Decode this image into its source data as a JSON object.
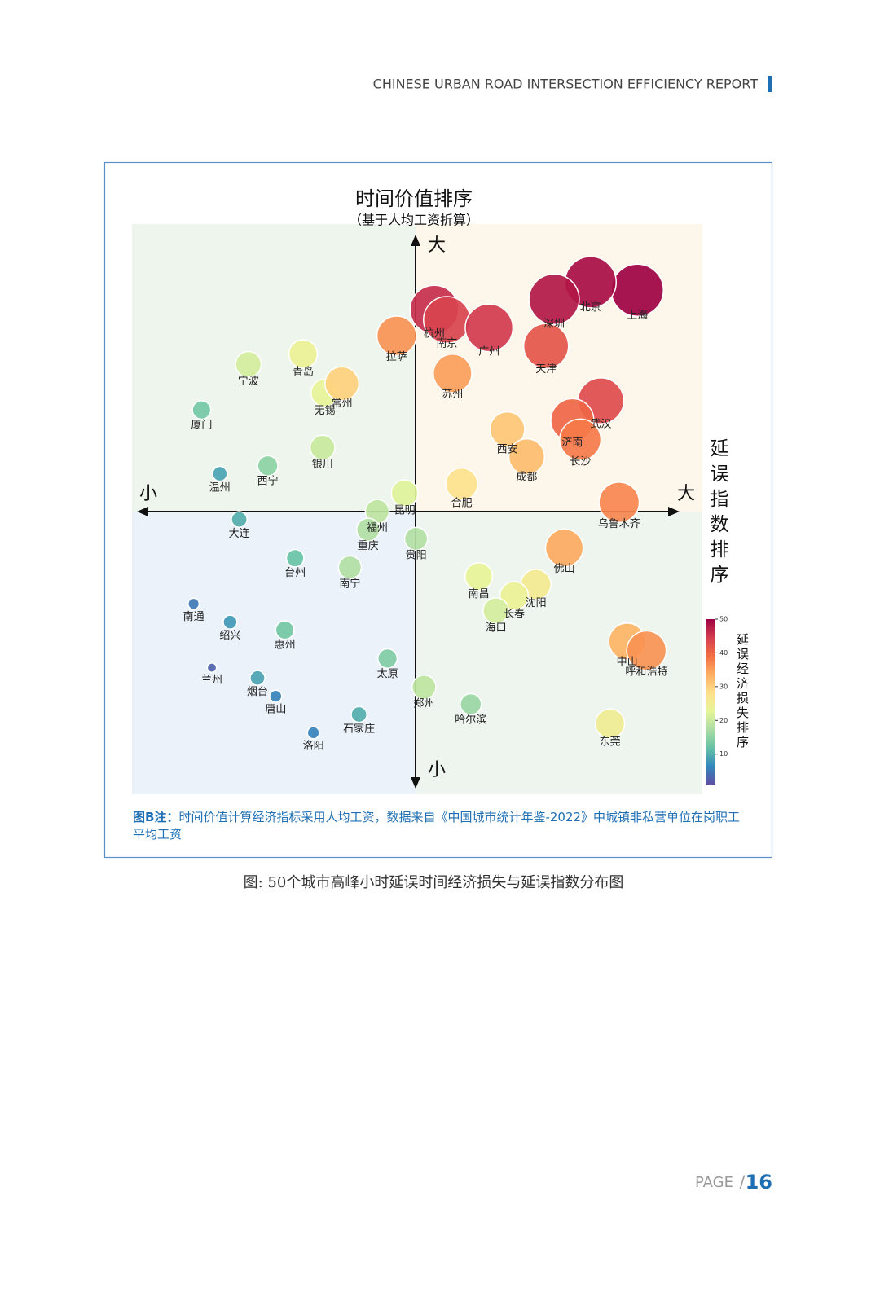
{
  "header": {
    "title": "CHINESE URBAN ROAD INTERSECTION EFFICIENCY REPORT"
  },
  "chart_data": {
    "type": "bubble",
    "title": "时间价值排序",
    "subtitle": "（基于人均工资折算）",
    "y_end_labels": [
      "大",
      "小"
    ],
    "x_title": "延误指数排序",
    "x_end_labels": [
      "小",
      "大"
    ],
    "labels": [
      "上海",
      "北京",
      "深圳",
      "杭州",
      "南京",
      "广州",
      "天津",
      "拉萨",
      "苏州",
      "武汉",
      "济南",
      "长沙",
      "西安",
      "成都",
      "合肥",
      "乌鲁木齐",
      "佛山",
      "南昌",
      "沈阳",
      "长春",
      "海口",
      "中山",
      "呼和浩特",
      "东莞",
      "哈尔滨",
      "郑州",
      "贵阳",
      "昆明",
      "福州",
      "重庆",
      "南宁",
      "太原",
      "石家庄",
      "洛阳",
      "唐山",
      "烟台",
      "兰州",
      "南通",
      "绍兴",
      "惠州",
      "台州",
      "大连",
      "温州",
      "西宁",
      "银川",
      "厦门",
      "宁波",
      "青岛",
      "无锡",
      "常州"
    ],
    "x": [
      44.3,
      40.2,
      37.0,
      26.5,
      27.6,
      31.3,
      36.3,
      23.2,
      28.1,
      41.1,
      38.6,
      39.3,
      32.9,
      34.6,
      28.9,
      42.7,
      37.9,
      30.4,
      35.4,
      33.5,
      31.9,
      43.4,
      45.1,
      41.9,
      29.7,
      25.6,
      24.9,
      23.9,
      21.5,
      20.7,
      19.1,
      22.4,
      19.9,
      15.9,
      12.6,
      11.0,
      7.0,
      5.4,
      8.6,
      13.4,
      14.3,
      9.4,
      7.7,
      11.9,
      16.7,
      6.1,
      10.2,
      15.0,
      16.9,
      18.4
    ],
    "values": [
      44.2,
      44.9,
      43.4,
      42.5,
      41.6,
      40.9,
      39.3,
      40.2,
      36.9,
      34.5,
      32.8,
      31.1,
      32.0,
      29.6,
      27.2,
      25.6,
      21.6,
      19.1,
      18.4,
      17.4,
      16.1,
      13.4,
      12.6,
      6.2,
      7.9,
      9.4,
      22.4,
      26.4,
      24.8,
      23.2,
      19.9,
      11.9,
      7.0,
      5.4,
      8.6,
      10.2,
      11.1,
      16.7,
      15.1,
      14.4,
      20.7,
      24.1,
      28.1,
      28.8,
      30.4,
      33.7,
      37.7,
      38.6,
      35.2,
      36.0
    ],
    "sizes": [
      50,
      49,
      48,
      46,
      44,
      45,
      42,
      36,
      35,
      43,
      40,
      38,
      31,
      32,
      28,
      37,
      34,
      23,
      26,
      24,
      21,
      33,
      36,
      25,
      16,
      19,
      18,
      22,
      19,
      18,
      18,
      14,
      10,
      6,
      6,
      9,
      3,
      5,
      8,
      13,
      12,
      10,
      9,
      15,
      20,
      13,
      21,
      24,
      23,
      30
    ],
    "xlim": [
      0,
      50
    ],
    "ylim": [
      0,
      50
    ],
    "colorbar": {
      "title": "延误经济损失排序",
      "lim": [
        1,
        50
      ],
      "ticks": [
        10,
        20,
        30,
        40,
        50
      ],
      "colors": [
        "#5e4fa2",
        "#3288bd",
        "#66c2a5",
        "#abdda4",
        "#e6f598",
        "#fee08b",
        "#fdae61",
        "#f46d43",
        "#d53e4f",
        "#9e0142"
      ]
    }
  },
  "note": {
    "label": "图B注：",
    "text": "时间价值计算经济指标采用人均工资，数据来自《中国城市统计年鉴-2022》中城镇非私营单位在岗职工平均工资"
  },
  "caption": "图: 50个城市高峰小时延误时间经济损失与延误指数分布图",
  "footer": {
    "page_label": "PAGE",
    "separator": "/",
    "page_number": "16"
  }
}
